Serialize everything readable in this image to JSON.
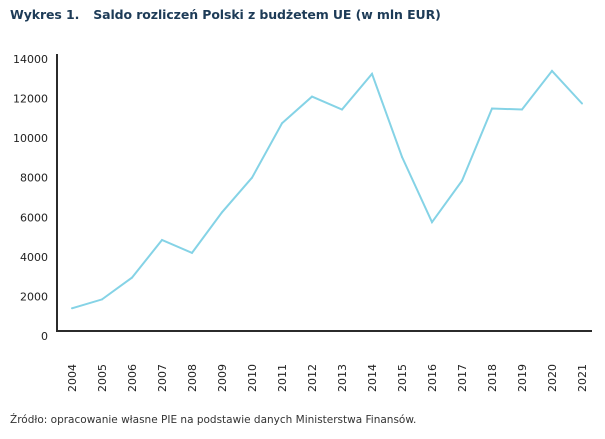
{
  "header": {
    "figure_number": "Wykres 1.",
    "title": "Saldo rozliczeń Polski z budżetem UE (w mln EUR)"
  },
  "footer": {
    "source": "Źródło: opracowanie własne PIE na podstawie danych Ministerstwa Finansów."
  },
  "chart_data": {
    "type": "line",
    "title": "Saldo rozliczeń Polski z budżetem UE (w mln EUR)",
    "xlabel": "",
    "ylabel": "",
    "categories": [
      "2004",
      "2005",
      "2006",
      "2007",
      "2008",
      "2009",
      "2010",
      "2011",
      "2012",
      "2013",
      "2014",
      "2015",
      "2016",
      "2017",
      "2018",
      "2019",
      "2020",
      "2021"
    ],
    "series": [
      {
        "name": "Saldo rozliczeń",
        "color": "#85d3e6",
        "values": [
          1400,
          1850,
          2950,
          4850,
          4200,
          6250,
          8000,
          10750,
          12100,
          11450,
          13250,
          9050,
          5750,
          7850,
          11500,
          11450,
          13400,
          11750
        ]
      }
    ],
    "ylim": [
      0,
      14000
    ],
    "yticks": [
      0,
      2000,
      4000,
      6000,
      8000,
      10000,
      12000,
      14000
    ],
    "grid": false,
    "legend": "none",
    "axis_color": "#2b2b2b"
  }
}
